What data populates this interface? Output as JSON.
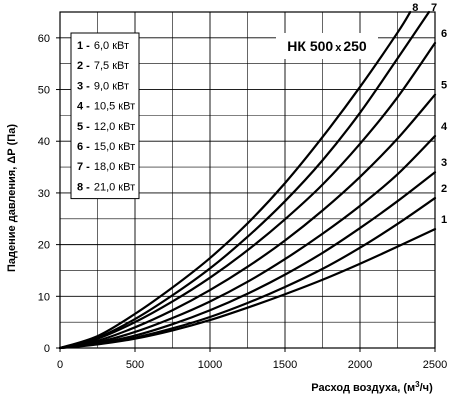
{
  "chart_data": {
    "type": "line",
    "title": "НК 500 x 250",
    "title_parts": [
      "НК 500",
      "x",
      "250"
    ],
    "xlabel": "Расход воздуха, (м³/ч)",
    "xlabel_parts": [
      "Расход воздуха, (м",
      "3",
      "/ч)"
    ],
    "ylabel": "Падение давления, ΔР (Па)",
    "xlim": [
      0,
      2500
    ],
    "ylim": [
      0,
      65
    ],
    "x_ticks": [
      0,
      500,
      1000,
      1500,
      2000,
      2500
    ],
    "y_ticks": [
      0,
      10,
      20,
      30,
      40,
      50,
      60
    ],
    "grid": true,
    "legend_position": "top-left",
    "series": [
      {
        "name": "1 - 6,0 кВт",
        "num": "1",
        "text": "6,0 кВт",
        "label": "1",
        "x": [
          0,
          250,
          500,
          750,
          1000,
          1250,
          1500,
          1750,
          2000,
          2250,
          2500
        ],
        "y": [
          0,
          0.7,
          1.8,
          3.4,
          5.4,
          7.8,
          10.4,
          13.2,
          16.3,
          19.6,
          23
        ]
      },
      {
        "name": "2 - 7,5 кВт",
        "num": "2",
        "text": "7,5 кВт",
        "label": "2",
        "x": [
          0,
          250,
          500,
          750,
          1000,
          1250,
          1500,
          1750,
          2000,
          2250,
          2500
        ],
        "y": [
          0,
          0.8,
          2.0,
          3.8,
          6.0,
          8.7,
          11.8,
          15.3,
          19.4,
          24.0,
          29
        ]
      },
      {
        "name": "3 - 9,0 кВт",
        "num": "3",
        "text": "9,0 кВт",
        "label": "3",
        "x": [
          0,
          250,
          500,
          750,
          1000,
          1250,
          1500,
          1750,
          2000,
          2250,
          2500
        ],
        "y": [
          0,
          0.9,
          2.4,
          4.6,
          7.3,
          10.5,
          14.2,
          18.4,
          23.2,
          28.4,
          34
        ]
      },
      {
        "name": "4 - 10,5 кВт",
        "num": "4",
        "text": "10,5 кВт",
        "label": "4",
        "x": [
          0,
          250,
          500,
          750,
          1000,
          1250,
          1500,
          1750,
          2000,
          2250,
          2500
        ],
        "y": [
          0,
          1.1,
          3.1,
          5.8,
          9.0,
          12.8,
          17.2,
          22.1,
          27.5,
          33.6,
          41
        ]
      },
      {
        "name": "5 - 12,0 кВт",
        "num": "5",
        "text": "12,0 кВт",
        "label": "5",
        "x": [
          0,
          250,
          500,
          750,
          1000,
          1250,
          1500,
          1750,
          2000,
          2250,
          2500
        ],
        "y": [
          0,
          1.4,
          4.0,
          7.3,
          11.2,
          15.7,
          20.8,
          26.6,
          33.1,
          40.5,
          49
        ]
      },
      {
        "name": "6 - 15,0 кВт",
        "num": "6",
        "text": "15,0 кВт",
        "label": "6",
        "x": [
          0,
          250,
          500,
          750,
          1000,
          1250,
          1500,
          1750,
          2000,
          2250,
          2500
        ],
        "y": [
          0,
          1.8,
          5.0,
          9.0,
          13.6,
          18.9,
          24.9,
          31.6,
          39.5,
          48.5,
          59
        ]
      },
      {
        "name": "7 - 18,0 кВт",
        "num": "7",
        "text": "18,0 кВт",
        "label": "7",
        "x": [
          0,
          250,
          500,
          750,
          1000,
          1250,
          1500,
          1750,
          2000,
          2250,
          2460
        ],
        "y": [
          0,
          2.0,
          5.6,
          10.2,
          15.4,
          21.5,
          28.4,
          36.3,
          45.5,
          56.0,
          65
        ]
      },
      {
        "name": "8 - 21,0 кВт",
        "num": "8",
        "text": "21,0 кВт",
        "label": "8",
        "x": [
          0,
          250,
          500,
          750,
          1000,
          1250,
          1500,
          1750,
          2000,
          2250,
          2335
        ],
        "y": [
          0,
          2.3,
          6.6,
          11.7,
          17.4,
          24.1,
          31.9,
          40.8,
          50.5,
          61.0,
          65
        ]
      }
    ]
  }
}
